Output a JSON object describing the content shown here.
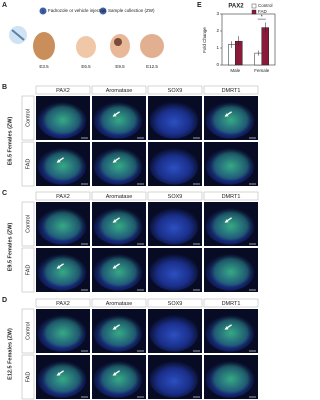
{
  "figure": {
    "panel_a": {
      "label": "A",
      "steps": [
        {
          "number": "1",
          "text": "Fadrozole or vehicle injection"
        },
        {
          "number": "2",
          "text": "Sample collection (ZW)"
        }
      ],
      "stages": [
        "E3.5",
        "E6.5",
        "E9.5",
        "E12.5"
      ]
    },
    "panel_e_label": "E",
    "image_panels": [
      {
        "label": "B",
        "group": "E6.5 Females (ZW)",
        "columns": [
          "PAX2",
          "Aromatase",
          "SOX9",
          "DMRT1"
        ],
        "rows": [
          "Control",
          "FAD"
        ]
      },
      {
        "label": "C",
        "group": "E9.5 Females (ZW)",
        "columns": [
          "PAX2",
          "Aromatase",
          "SOX9",
          "DMRT1"
        ],
        "rows": [
          "Control",
          "FAD"
        ]
      },
      {
        "label": "D",
        "group": "E12.5 Females (ZW)",
        "columns": [
          "PAX2",
          "Aromatase",
          "SOX9",
          "DMRT1"
        ],
        "rows": [
          "Control",
          "FAD"
        ]
      }
    ]
  },
  "chart_data": {
    "type": "bar",
    "title": "PAX2",
    "y_label": "Fold Change",
    "categories": [
      "Male",
      "Female"
    ],
    "series": [
      {
        "name": "Control",
        "color": "#ffffff",
        "values": [
          1.2,
          0.7
        ],
        "errors": [
          0.2,
          0.15
        ]
      },
      {
        "name": "FAD",
        "color": "#8b1a3a",
        "values": [
          1.4,
          2.2
        ],
        "errors": [
          0.3,
          0.3
        ]
      }
    ],
    "ylim": [
      0,
      3
    ],
    "yticks": [
      0,
      1,
      2,
      3
    ],
    "legend": "upper right",
    "annotation": "*"
  }
}
